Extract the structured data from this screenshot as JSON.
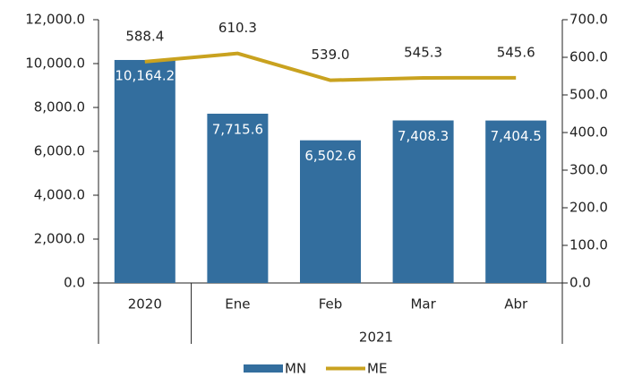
{
  "chart_data": {
    "type": "bar_line",
    "categories": [
      "2020",
      "Ene",
      "Feb",
      "Mar",
      "Abr"
    ],
    "category_group": {
      "label": "2021",
      "first": 1,
      "last": 4
    },
    "series": [
      {
        "name": "MN",
        "type": "bar",
        "color": "#336e9e",
        "values": [
          10164.2,
          7715.6,
          6502.6,
          7408.3,
          7404.5
        ],
        "value_labels": [
          "10,164.2",
          "7,715.6",
          "6,502.6",
          "7,408.3",
          "7,404.5"
        ]
      },
      {
        "name": "ME",
        "type": "line",
        "axis": "y2",
        "color": "#c9a21f",
        "values": [
          588.4,
          610.3,
          539.0,
          545.3,
          545.6
        ],
        "value_labels": [
          "588.4",
          "610.3",
          "539.0",
          "545.3",
          "545.6"
        ]
      }
    ],
    "ylim": [
      0,
      12000
    ],
    "yticks": [
      {
        "value": 0,
        "label": "0.0"
      },
      {
        "value": 2000,
        "label": "2,000.0"
      },
      {
        "value": 4000,
        "label": "4,000.0"
      },
      {
        "value": 6000,
        "label": "6,000.0"
      },
      {
        "value": 8000,
        "label": "8,000.0"
      },
      {
        "value": 10000,
        "label": "10,000.0"
      },
      {
        "value": 12000,
        "label": "12,000.0"
      }
    ],
    "y2lim": [
      0,
      700
    ],
    "y2ticks": [
      {
        "value": 0,
        "label": "0.0"
      },
      {
        "value": 100,
        "label": "100.0"
      },
      {
        "value": 200,
        "label": "200.0"
      },
      {
        "value": 300,
        "label": "300.0"
      },
      {
        "value": 400,
        "label": "400.0"
      },
      {
        "value": 500,
        "label": "500.0"
      },
      {
        "value": 600,
        "label": "600.0"
      },
      {
        "value": 700,
        "label": "700.0"
      }
    ],
    "legend": "bottom"
  }
}
